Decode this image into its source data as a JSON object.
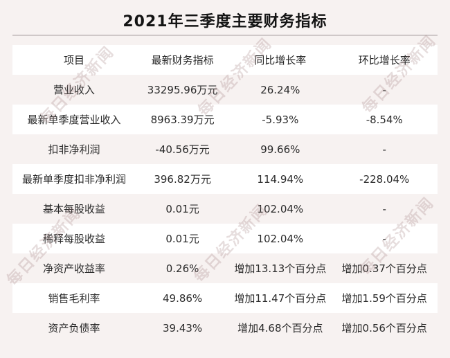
{
  "title": "2021年三季度主要财务指标",
  "watermark": {
    "text": "每日经济新闻"
  },
  "colors": {
    "page_background": "#f7f2f1",
    "row_stripe_white": "#ffffff",
    "divider": "#cfc8c8",
    "text": "#262626",
    "watermark": "rgba(164,132,132,0.28)"
  },
  "chart_data": {
    "type": "table",
    "title": "2021年三季度主要财务指标",
    "columns": [
      "项目",
      "最新财务指标",
      "同比增长率",
      "环比增长率"
    ],
    "rows": [
      [
        "营业收入",
        "33295.96万元",
        "26.24%",
        "-"
      ],
      [
        "最新单季度营业收入",
        "8963.39万元",
        "-5.93%",
        "-8.54%"
      ],
      [
        "扣非净利润",
        "-40.56万元",
        "99.66%",
        "-"
      ],
      [
        "最新单季度扣非净利润",
        "396.82万元",
        "114.94%",
        "-228.04%"
      ],
      [
        "基本每股收益",
        "0.01元",
        "102.04%",
        "-"
      ],
      [
        "稀释每股收益",
        "0.01元",
        "102.04%",
        "-"
      ],
      [
        "净资产收益率",
        "0.26%",
        "增加13.13个百分点",
        "增加0.37个百分点"
      ],
      [
        "销售毛利率",
        "49.86%",
        "增加11.47个百分点",
        "增加1.59个百分点"
      ],
      [
        "资产负债率",
        "39.43%",
        "增加4.68个百分点",
        "增加0.56个百分点"
      ]
    ],
    "layout": {
      "striped": true,
      "header_background": "white",
      "odd_data_rows_background": "page_background"
    }
  }
}
